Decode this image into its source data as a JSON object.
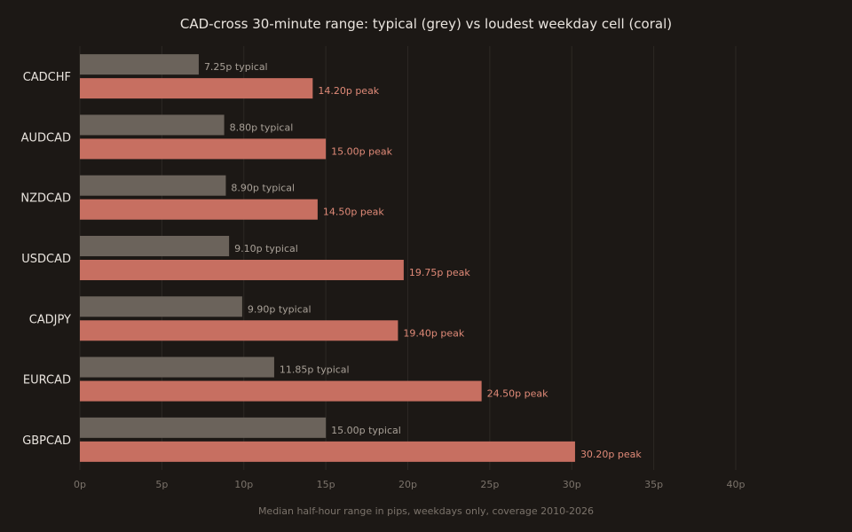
{
  "chart_data": {
    "type": "bar",
    "orientation": "horizontal",
    "title": "CAD-cross 30-minute range: typical (grey) vs loudest weekday cell (coral)",
    "xlabel": "Median half-hour range in pips, weekdays only, coverage 2010-2026",
    "ylabel": "",
    "xlim": [
      0,
      40
    ],
    "x_ticks": [
      "0p",
      "5p",
      "10p",
      "15p",
      "20p",
      "25p",
      "30p",
      "35p",
      "40p"
    ],
    "x_tick_values": [
      0,
      5,
      10,
      15,
      20,
      25,
      30,
      35,
      40
    ],
    "grid": "vertical",
    "categories": [
      "CADCHF",
      "AUDCAD",
      "NZDCAD",
      "USDCAD",
      "CADJPY",
      "EURCAD",
      "GBPCAD"
    ],
    "series": [
      {
        "key": "typical",
        "color": "#6b635b",
        "values": [
          7.25,
          8.8,
          8.9,
          9.1,
          9.9,
          11.85,
          15.0
        ],
        "labels": [
          "7.25p typical",
          "8.80p typical",
          "8.90p typical",
          "9.10p typical",
          "9.90p typical",
          "11.85p typical",
          "15.00p typical"
        ]
      },
      {
        "key": "peak",
        "color": "#c76f61",
        "label_color": "#e08a78",
        "values": [
          14.2,
          15.0,
          14.5,
          19.75,
          19.4,
          24.5,
          30.2
        ],
        "labels": [
          "14.20p peak",
          "15.00p peak",
          "14.50p peak",
          "19.75p peak",
          "19.40p peak",
          "24.50p peak",
          "30.20p peak"
        ]
      }
    ]
  }
}
